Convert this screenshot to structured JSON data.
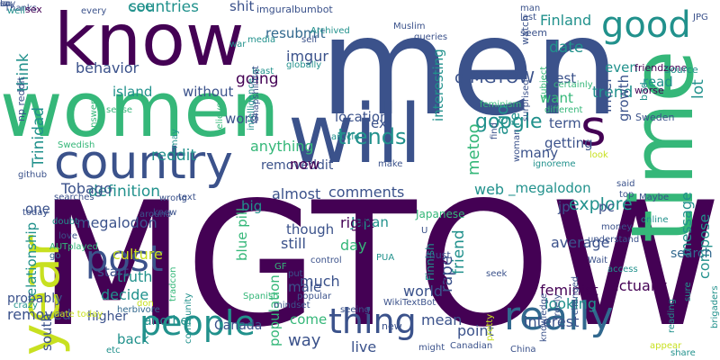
{
  "palette": {
    "deep_purple": "#440154",
    "indigo": "#3b528b",
    "blue": "#31688e",
    "teal": "#21918c",
    "green": "#35b779",
    "light_green": "#90d743",
    "yellow": "#c8e020",
    "background": "#ffffff"
  },
  "words": [
    "MGTOW",
    "men",
    "women",
    "know",
    "time",
    "will",
    "country",
    "year",
    "good",
    "s",
    "post",
    "people",
    "thing",
    "really",
    "trends",
    "google",
    "explore",
    "date",
    "trend",
    "Finland",
    "compose",
    "message",
    "q MGTOW",
    "metoo",
    "reddit",
    "imgur",
    "comments",
    "megalodon",
    "jp",
    "pc",
    "_megalodon",
    "removeddit",
    "relationship",
    "definition",
    "culture",
    "truth",
    "decide",
    "removed",
    "higher",
    "another",
    "Canada",
    "way",
    "live",
    "mean",
    "interest",
    "point",
    "friend",
    "rape",
    "guy",
    "Japan",
    "feminist",
    "looking",
    "average",
    "actually",
    "search",
    "web",
    "almost",
    "now",
    "though",
    "right",
    "day",
    "still",
    "much",
    "world",
    "come",
    "male",
    "population",
    "blue pill",
    "big",
    "anything",
    "going",
    "think",
    "np reddit",
    "Trinidad",
    "Tobago",
    "behavior",
    "island",
    "without",
    "resubmit",
    "see",
    "countries",
    "shit",
    "lot",
    "word",
    "location",
    "interesting",
    "ago",
    "re",
    "ex",
    "want",
    "many",
    "getting",
    "term",
    "west",
    "even",
    "incel",
    "growth",
    "read",
    "bad",
    "friendzone",
    "Source",
    "worse",
    "Sweden",
    "subject",
    "seem",
    "watch",
    "Muslim",
    "queries",
    "feminism",
    "JPG",
    "last",
    "man",
    "every",
    "imguralbumbot",
    "Archived",
    "self",
    "media",
    "war",
    "globally",
    "least",
    "intelligence",
    "believe",
    "sense",
    "answer",
    "may",
    "searches",
    "one",
    "start",
    "back",
    "text",
    "today",
    "github",
    "doubt",
    "love",
    "AUTplayed",
    "go",
    "probably",
    "south",
    "crazy",
    "date today",
    "herbivore",
    "tradcon",
    "wrong",
    "knew",
    "around",
    "community",
    "GF",
    "put",
    "control",
    "mindset",
    "Spanish",
    "don",
    "etc",
    "PUA",
    "Japanese",
    "U",
    "seek",
    "popular",
    "must",
    "WikiTextBot",
    "Finnish",
    "new",
    "seeing",
    "Canadian",
    "might",
    "China",
    "pretty",
    "knowledge",
    "changed",
    "freely",
    "Wait",
    "access",
    "money",
    "understand",
    "Maybe",
    "online",
    "said",
    "top",
    "sure",
    "reading",
    "appear",
    "share",
    "brigaders",
    "ignoreme",
    "surprised",
    "find",
    "make",
    "article",
    "ShapshillBot",
    "look",
    "certainly",
    "different",
    "Thanks",
    "Swedish",
    "woman",
    "sex",
    "well",
    "say",
    "la",
    "en"
  ]
}
